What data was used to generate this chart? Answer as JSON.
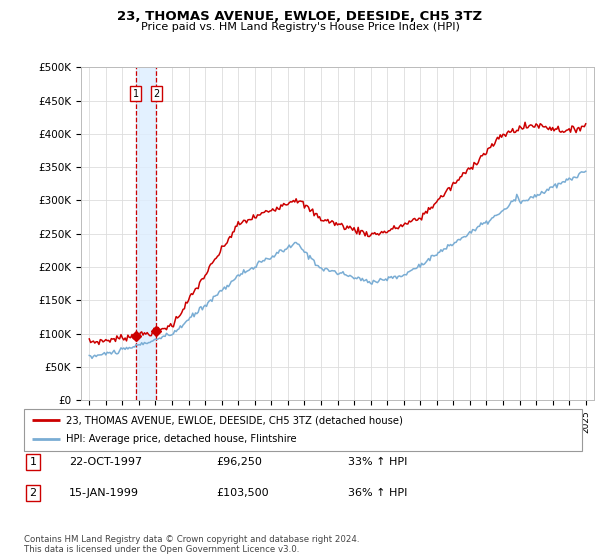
{
  "title": "23, THOMAS AVENUE, EWLOE, DEESIDE, CH5 3TZ",
  "subtitle": "Price paid vs. HM Land Registry's House Price Index (HPI)",
  "ylabel_ticks": [
    "£0",
    "£50K",
    "£100K",
    "£150K",
    "£200K",
    "£250K",
    "£300K",
    "£350K",
    "£400K",
    "£450K",
    "£500K"
  ],
  "ytick_values": [
    0,
    50000,
    100000,
    150000,
    200000,
    250000,
    300000,
    350000,
    400000,
    450000,
    500000
  ],
  "xlim": [
    1994.5,
    2025.5
  ],
  "ylim": [
    0,
    500000
  ],
  "sale1": {
    "year": 1997.8,
    "price": 96250,
    "label": "1",
    "date": "22-OCT-1997",
    "hpi_pct": "33%"
  },
  "sale2": {
    "year": 1999.05,
    "price": 103500,
    "label": "2",
    "date": "15-JAN-1999",
    "hpi_pct": "36%"
  },
  "red_line_color": "#cc0000",
  "blue_line_color": "#7aadd4",
  "vline_color": "#cc0000",
  "highlight_fill": "#ddeeff",
  "legend_label_red": "23, THOMAS AVENUE, EWLOE, DEESIDE, CH5 3TZ (detached house)",
  "legend_label_blue": "HPI: Average price, detached house, Flintshire",
  "footer": "Contains HM Land Registry data © Crown copyright and database right 2024.\nThis data is licensed under the Open Government Licence v3.0.",
  "xtick_years": [
    1995,
    1996,
    1997,
    1998,
    1999,
    2000,
    2001,
    2002,
    2003,
    2004,
    2005,
    2006,
    2007,
    2008,
    2009,
    2010,
    2011,
    2012,
    2013,
    2014,
    2015,
    2016,
    2017,
    2018,
    2019,
    2020,
    2021,
    2022,
    2023,
    2024,
    2025
  ],
  "transactions": [
    {
      "num": "1",
      "date": "22-OCT-1997",
      "price": "£96,250",
      "hpi": "33% ↑ HPI"
    },
    {
      "num": "2",
      "date": "15-JAN-1999",
      "price": "£103,500",
      "hpi": "36% ↑ HPI"
    }
  ]
}
